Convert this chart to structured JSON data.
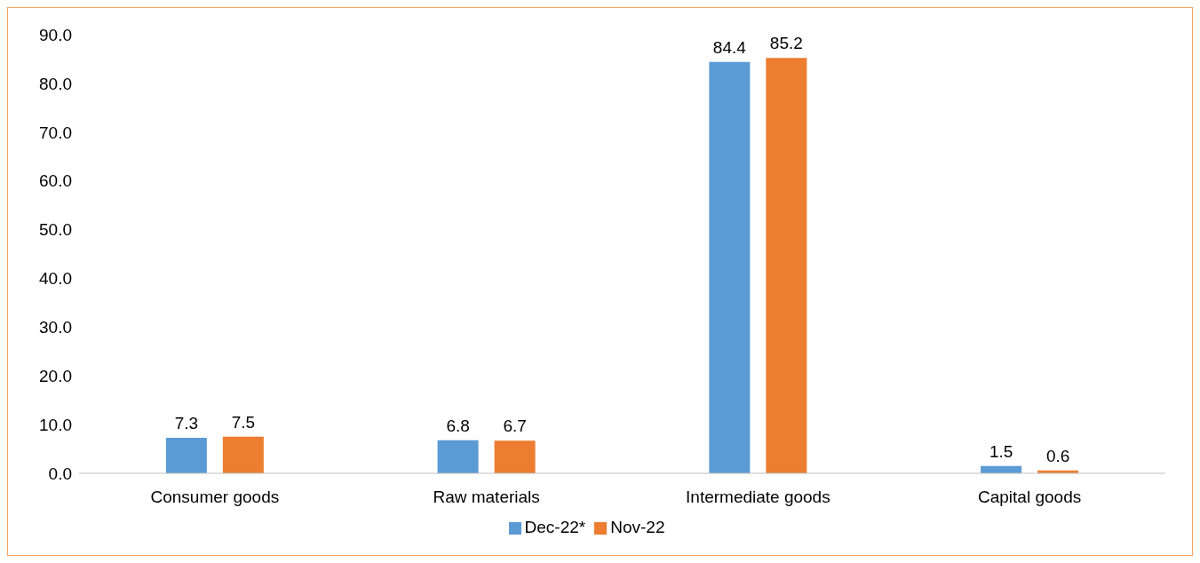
{
  "chart_data": {
    "type": "bar",
    "categories": [
      "Consumer goods",
      "Raw materials",
      "Intermediate goods",
      "Capital goods"
    ],
    "series": [
      {
        "name": "Dec-22*",
        "color": "#5b9bd5",
        "values": [
          7.3,
          6.8,
          84.4,
          1.5
        ]
      },
      {
        "name": "Nov-22",
        "color": "#ed7d31",
        "values": [
          7.5,
          6.7,
          85.2,
          0.6
        ]
      }
    ],
    "ylim": [
      0,
      90
    ],
    "yticks": [
      {
        "value": 0,
        "label": "0.0"
      },
      {
        "value": 10,
        "label": "10.0"
      },
      {
        "value": 20,
        "label": "20.0"
      },
      {
        "value": 30,
        "label": "30.0"
      },
      {
        "value": 40,
        "label": "40.0"
      },
      {
        "value": 50,
        "label": "50.0"
      },
      {
        "value": 60,
        "label": "60.0"
      },
      {
        "value": 70,
        "label": "70.0"
      },
      {
        "value": 80,
        "label": "80.0"
      },
      {
        "value": 90,
        "label": "90.0"
      }
    ],
    "grid": false,
    "legend": "bottom",
    "data_labels": true
  }
}
